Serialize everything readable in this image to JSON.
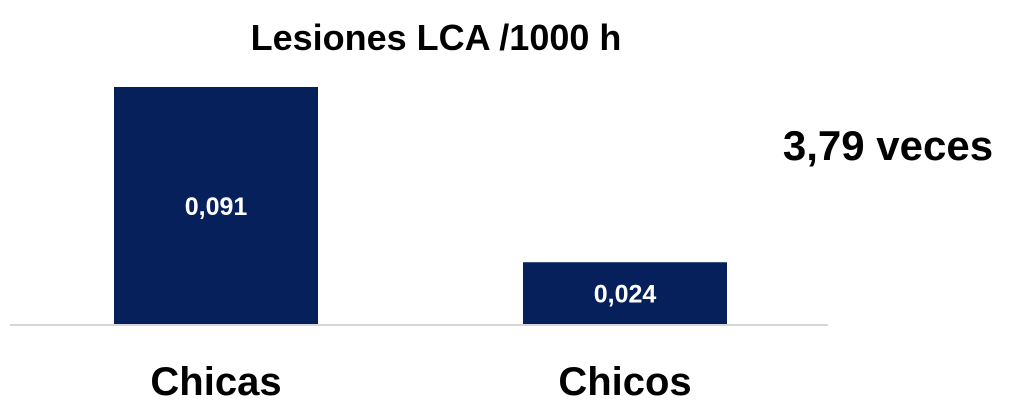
{
  "chart_data": {
    "type": "bar",
    "title": "Lesiones LCA /1000 h",
    "categories": [
      "Chicas",
      "Chicos"
    ],
    "values": [
      0.091,
      0.024
    ],
    "data_labels": [
      "0,091",
      "0,024"
    ],
    "xlabel": "",
    "ylabel": "",
    "ylim": [
      0,
      0.091
    ],
    "grid": false,
    "legend": "none",
    "annotation": "3,79 veces",
    "colors": {
      "bar": "#06205c",
      "bar_label": "#ffffff",
      "text": "#000000",
      "axis": "#d6d6d6"
    }
  }
}
